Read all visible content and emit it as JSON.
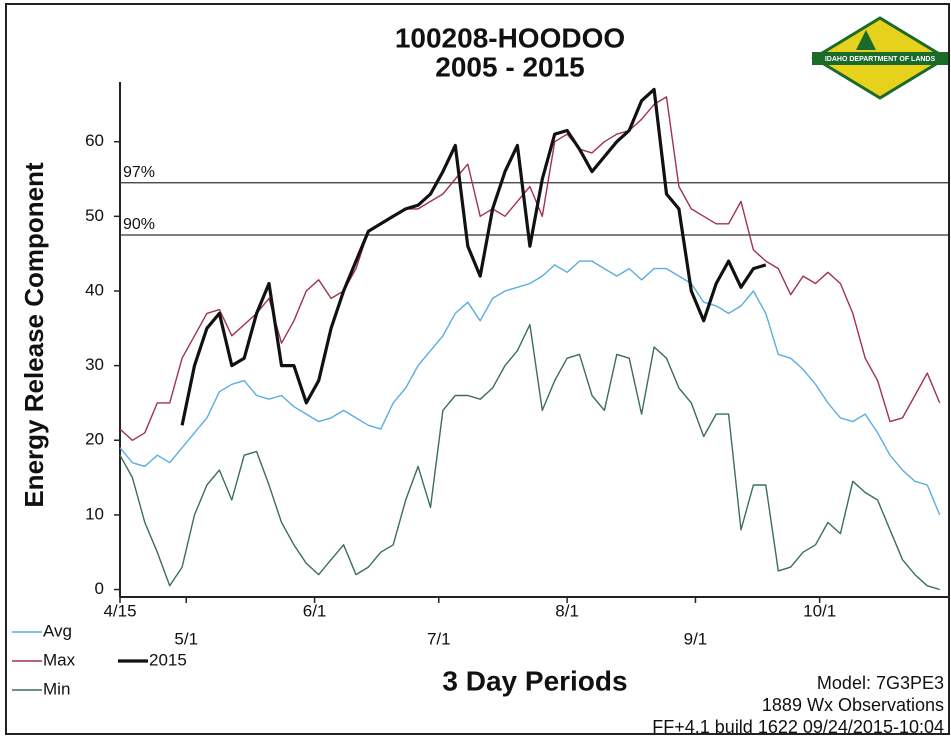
{
  "chart_data": {
    "type": "line",
    "title": "100208-HOODOO",
    "subtitle": "2005 - 2015",
    "y_label": "Energy Release Component",
    "x_label": "3 Day Periods",
    "logo_text": "IDAHO DEPARTMENT OF LANDS",
    "footer": [
      "Model: 7G3PE3",
      "1889 Wx Observations",
      "FF+4.1 build 1622 09/24/2015-10:04"
    ],
    "x": [
      0,
      3,
      6,
      9,
      12,
      15,
      18,
      21,
      24,
      27,
      30,
      33,
      36,
      39,
      42,
      45,
      48,
      51,
      54,
      57,
      60,
      63,
      66,
      69,
      72,
      75,
      78,
      81,
      84,
      87,
      90,
      93,
      96,
      99,
      102,
      105,
      108,
      111,
      114,
      117,
      120,
      123,
      126,
      129,
      132,
      135,
      138,
      141,
      144,
      147,
      150,
      153,
      156,
      159,
      162,
      165,
      168,
      171,
      174,
      177,
      180,
      183,
      186,
      189,
      192,
      195,
      198
    ],
    "xlim": [
      0,
      200
    ],
    "xticks": [
      {
        "value": 0,
        "label": "4/15"
      },
      {
        "value": 16,
        "label": "5/1"
      },
      {
        "value": 47,
        "label": "6/1"
      },
      {
        "value": 77,
        "label": "7/1"
      },
      {
        "value": 108,
        "label": "8/1"
      },
      {
        "value": 139,
        "label": "9/1"
      },
      {
        "value": 169,
        "label": "10/1"
      }
    ],
    "ylim": [
      -1,
      68
    ],
    "yticks": [
      0,
      10,
      20,
      30,
      40,
      50,
      60
    ],
    "reference_lines": [
      {
        "label": "97%",
        "value": 54.5
      },
      {
        "label": "90%",
        "value": 47.5
      }
    ],
    "series": [
      {
        "name": "Avg",
        "color": "#5aaee0",
        "values": [
          19,
          17,
          16.5,
          18,
          17,
          19,
          21,
          23,
          26.5,
          27.5,
          28,
          26,
          25.5,
          26,
          24.5,
          23.5,
          22.5,
          23,
          24,
          23,
          22,
          21.5,
          25,
          27,
          30,
          32,
          34,
          37,
          38.5,
          36,
          39,
          40,
          40.5,
          41,
          42,
          43.5,
          42.5,
          44,
          44,
          43,
          42,
          43,
          41.5,
          43,
          43,
          42,
          41,
          38.5,
          38,
          37,
          38,
          40,
          37,
          31.5,
          31,
          29.5,
          27.5,
          25,
          23,
          22.5,
          23.5,
          21,
          18,
          16,
          14.5,
          14,
          10
        ]
      },
      {
        "name": "Max",
        "color": "#a0344a",
        "values": [
          21.5,
          20,
          21,
          25,
          25,
          31,
          34,
          37,
          37.5,
          34,
          35.5,
          37,
          39,
          33,
          36,
          40,
          41.5,
          39,
          40,
          43,
          48,
          49,
          50,
          51,
          51,
          52,
          53,
          55,
          57,
          50,
          51,
          50,
          52,
          54,
          50,
          60,
          61,
          59,
          58.5,
          60,
          61,
          61.5,
          63,
          65,
          66,
          54,
          51,
          50,
          49,
          49,
          52,
          45.5,
          44,
          43,
          39.5,
          42,
          41,
          42.5,
          41,
          37,
          31,
          28,
          22.5,
          23,
          26,
          29,
          25
        ]
      },
      {
        "name": "Min",
        "color": "#3c6e58",
        "values": [
          18,
          15,
          9,
          5,
          0.5,
          3,
          10,
          14,
          16,
          12,
          18,
          18.5,
          14,
          9,
          6,
          3.5,
          2,
          4,
          6,
          2,
          3,
          5,
          6,
          12,
          16.5,
          11,
          24,
          26,
          26,
          25.5,
          27,
          30,
          32,
          35.5,
          24,
          28,
          31,
          31.5,
          26,
          24,
          31.5,
          31,
          23.5,
          32.5,
          31,
          27,
          25,
          20.5,
          23.5,
          23.5,
          8,
          14,
          14,
          2.5,
          3,
          5,
          6,
          9,
          7.5,
          14.5,
          13,
          12,
          8,
          4,
          2,
          0.5,
          0
        ]
      },
      {
        "name": "2015",
        "color": "#111111",
        "values": [
          null,
          null,
          null,
          null,
          null,
          22,
          30,
          35,
          37,
          30,
          31,
          37,
          41,
          30,
          30,
          25,
          28,
          35,
          40,
          44,
          48,
          49,
          50,
          51,
          51.5,
          53,
          56,
          59.5,
          46,
          42,
          51,
          56,
          59.5,
          46,
          55,
          61,
          61.5,
          59,
          56,
          58,
          60,
          61.5,
          65.5,
          67,
          53,
          51,
          40,
          36,
          41,
          44,
          40.5,
          43,
          43.5,
          null,
          null,
          null,
          null,
          null,
          null,
          null,
          null,
          null,
          null,
          null,
          null,
          null,
          null
        ]
      }
    ]
  }
}
